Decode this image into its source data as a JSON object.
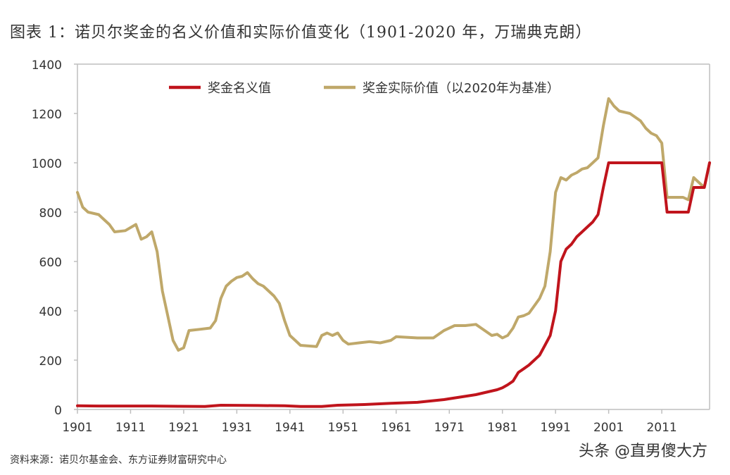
{
  "title": "图表 1：诺贝尔奖金的名义价值和实际价值变化（1901-2020 年，万瑞典克朗）",
  "source": "资料来源：诺贝尔基金会、东方证券财富研究中心",
  "watermark": "头条 @直男傻大方",
  "colors": {
    "nominal": "#c0141c",
    "real": "#bfa86a",
    "axis": "#bfbfbf",
    "text": "#333333"
  },
  "chart_data": {
    "type": "line",
    "title": "图表 1：诺贝尔奖金的名义价值和实际价值变化（1901-2020 年，万瑞典克朗）",
    "xlabel": "",
    "ylabel": "",
    "xlim": [
      1901,
      2020
    ],
    "ylim": [
      0,
      1400
    ],
    "yticks": [
      0,
      200,
      400,
      600,
      800,
      1000,
      1200,
      1400
    ],
    "xticks": [
      1901,
      1911,
      1921,
      1931,
      1941,
      1951,
      1961,
      1971,
      1981,
      1991,
      2001,
      2011
    ],
    "grid": false,
    "legend": "top",
    "series": [
      {
        "name": "奖金名义值",
        "color": "#c0141c",
        "points": [
          [
            1901,
            15
          ],
          [
            1905,
            14
          ],
          [
            1910,
            14
          ],
          [
            1915,
            14
          ],
          [
            1920,
            13
          ],
          [
            1925,
            12
          ],
          [
            1928,
            17
          ],
          [
            1935,
            16
          ],
          [
            1940,
            15
          ],
          [
            1943,
            12
          ],
          [
            1947,
            12
          ],
          [
            1950,
            17
          ],
          [
            1955,
            20
          ],
          [
            1960,
            25
          ],
          [
            1965,
            29
          ],
          [
            1970,
            40
          ],
          [
            1973,
            50
          ],
          [
            1976,
            60
          ],
          [
            1978,
            70
          ],
          [
            1980,
            80
          ],
          [
            1981,
            88
          ],
          [
            1982,
            100
          ],
          [
            1983,
            115
          ],
          [
            1984,
            150
          ],
          [
            1985,
            165
          ],
          [
            1986,
            180
          ],
          [
            1987,
            200
          ],
          [
            1988,
            220
          ],
          [
            1989,
            260
          ],
          [
            1990,
            300
          ],
          [
            1991,
            400
          ],
          [
            1992,
            600
          ],
          [
            1993,
            650
          ],
          [
            1994,
            670
          ],
          [
            1995,
            700
          ],
          [
            1996,
            720
          ],
          [
            1997,
            740
          ],
          [
            1998,
            760
          ],
          [
            1999,
            790
          ],
          [
            2000,
            900
          ],
          [
            2001,
            1000
          ],
          [
            2002,
            1000
          ],
          [
            2005,
            1000
          ],
          [
            2008,
            1000
          ],
          [
            2010,
            1000
          ],
          [
            2011,
            1000
          ],
          [
            2012,
            800
          ],
          [
            2013,
            800
          ],
          [
            2016,
            800
          ],
          [
            2017,
            900
          ],
          [
            2018,
            900
          ],
          [
            2019,
            900
          ],
          [
            2020,
            1000
          ]
        ]
      },
      {
        "name": "奖金实际价值（以2020年为基准）",
        "color": "#bfa86a",
        "points": [
          [
            1901,
            880
          ],
          [
            1902,
            820
          ],
          [
            1903,
            800
          ],
          [
            1905,
            790
          ],
          [
            1906,
            770
          ],
          [
            1907,
            750
          ],
          [
            1908,
            720
          ],
          [
            1910,
            725
          ],
          [
            1912,
            750
          ],
          [
            1913,
            690
          ],
          [
            1914,
            700
          ],
          [
            1915,
            720
          ],
          [
            1916,
            640
          ],
          [
            1917,
            480
          ],
          [
            1918,
            380
          ],
          [
            1919,
            280
          ],
          [
            1920,
            240
          ],
          [
            1921,
            250
          ],
          [
            1922,
            320
          ],
          [
            1924,
            325
          ],
          [
            1926,
            330
          ],
          [
            1927,
            360
          ],
          [
            1928,
            450
          ],
          [
            1929,
            500
          ],
          [
            1930,
            520
          ],
          [
            1931,
            535
          ],
          [
            1932,
            540
          ],
          [
            1933,
            555
          ],
          [
            1934,
            530
          ],
          [
            1935,
            510
          ],
          [
            1936,
            500
          ],
          [
            1937,
            480
          ],
          [
            1938,
            460
          ],
          [
            1939,
            430
          ],
          [
            1940,
            360
          ],
          [
            1941,
            300
          ],
          [
            1942,
            280
          ],
          [
            1943,
            260
          ],
          [
            1946,
            255
          ],
          [
            1947,
            300
          ],
          [
            1948,
            310
          ],
          [
            1949,
            300
          ],
          [
            1950,
            310
          ],
          [
            1951,
            280
          ],
          [
            1952,
            265
          ],
          [
            1954,
            270
          ],
          [
            1956,
            275
          ],
          [
            1958,
            270
          ],
          [
            1960,
            280
          ],
          [
            1961,
            295
          ],
          [
            1965,
            290
          ],
          [
            1968,
            290
          ],
          [
            1970,
            320
          ],
          [
            1972,
            340
          ],
          [
            1974,
            340
          ],
          [
            1976,
            345
          ],
          [
            1977,
            330
          ],
          [
            1979,
            300
          ],
          [
            1980,
            305
          ],
          [
            1981,
            290
          ],
          [
            1982,
            300
          ],
          [
            1983,
            330
          ],
          [
            1984,
            375
          ],
          [
            1985,
            380
          ],
          [
            1986,
            390
          ],
          [
            1987,
            420
          ],
          [
            1988,
            450
          ],
          [
            1989,
            500
          ],
          [
            1990,
            640
          ],
          [
            1991,
            880
          ],
          [
            1992,
            940
          ],
          [
            1993,
            930
          ],
          [
            1994,
            950
          ],
          [
            1995,
            960
          ],
          [
            1996,
            975
          ],
          [
            1997,
            980
          ],
          [
            1998,
            1000
          ],
          [
            1999,
            1020
          ],
          [
            2000,
            1150
          ],
          [
            2001,
            1260
          ],
          [
            2002,
            1230
          ],
          [
            2003,
            1210
          ],
          [
            2005,
            1200
          ],
          [
            2007,
            1170
          ],
          [
            2008,
            1140
          ],
          [
            2009,
            1120
          ],
          [
            2010,
            1110
          ],
          [
            2011,
            1080
          ],
          [
            2012,
            860
          ],
          [
            2015,
            860
          ],
          [
            2016,
            850
          ],
          [
            2017,
            940
          ],
          [
            2018,
            920
          ],
          [
            2019,
            900
          ],
          [
            2020,
            1000
          ]
        ]
      }
    ]
  }
}
